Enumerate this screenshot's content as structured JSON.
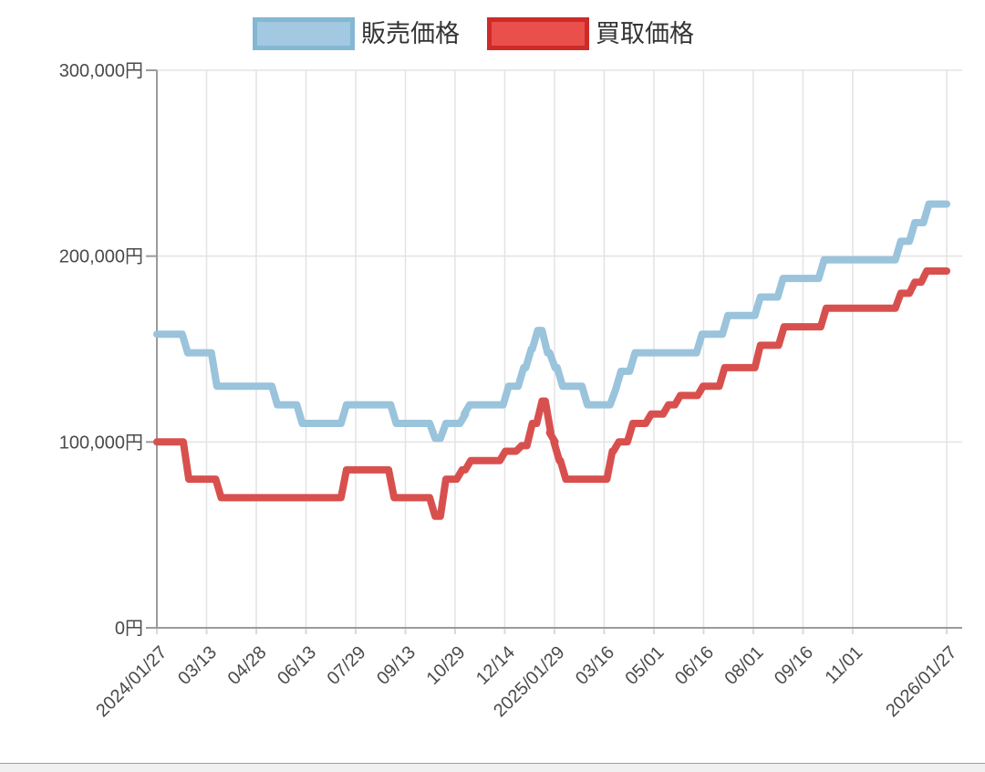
{
  "legend": {
    "items": [
      {
        "id": "hanbai",
        "label": "販売価格",
        "fill": "#a2c9e1",
        "border": "#84b7d3"
      },
      {
        "id": "kaitori",
        "label": "買取価格",
        "fill": "#e9504b",
        "border": "#ce2b28"
      }
    ]
  },
  "chart_data": {
    "type": "line",
    "step": true,
    "x_type": "date",
    "x_range": [
      "2024-01-27",
      "2026-01-27"
    ],
    "ylim": [
      0,
      300000
    ],
    "grid": true,
    "legend_position": "top",
    "y_ticks": [
      {
        "value": 0,
        "label": "0円"
      },
      {
        "value": 100000,
        "label": "100,000円"
      },
      {
        "value": 200000,
        "label": "200,000円"
      },
      {
        "value": 300000,
        "label": "300,000円"
      }
    ],
    "x_ticks": [
      {
        "date": "2024-01-27",
        "label": "2024/01/27"
      },
      {
        "date": "2024-03-13",
        "label": "03/13"
      },
      {
        "date": "2024-04-28",
        "label": "04/28"
      },
      {
        "date": "2024-06-13",
        "label": "06/13"
      },
      {
        "date": "2024-07-29",
        "label": "07/29"
      },
      {
        "date": "2024-09-13",
        "label": "09/13"
      },
      {
        "date": "2024-10-29",
        "label": "10/29"
      },
      {
        "date": "2024-12-14",
        "label": "12/14"
      },
      {
        "date": "2025-01-29",
        "label": "2025/01/29"
      },
      {
        "date": "2025-03-16",
        "label": "03/16"
      },
      {
        "date": "2025-05-01",
        "label": "05/01"
      },
      {
        "date": "2025-06-16",
        "label": "06/16"
      },
      {
        "date": "2025-08-01",
        "label": "08/01"
      },
      {
        "date": "2025-09-16",
        "label": "09/16"
      },
      {
        "date": "2025-11-01",
        "label": "11/01"
      },
      {
        "date": "2026-01-27",
        "label": "2026/01/27"
      }
    ],
    "style": {
      "grid_color": "#e3e3e3",
      "axis_color": "#9b9b9b",
      "tick_text_color": "#4a4a4a",
      "x_tick_mark_color": "#d9d9d9",
      "line_width": 8
    },
    "series": [
      {
        "name": "販売価格",
        "color": "#9ac3dc",
        "points": [
          [
            "2024-01-27",
            158000
          ],
          [
            "2024-02-22",
            148000
          ],
          [
            "2024-03-20",
            130000
          ],
          [
            "2024-05-15",
            120000
          ],
          [
            "2024-06-07",
            110000
          ],
          [
            "2024-07-18",
            120000
          ],
          [
            "2024-09-02",
            110000
          ],
          [
            "2024-10-08",
            102000
          ],
          [
            "2024-10-18",
            110000
          ],
          [
            "2024-11-05",
            115000
          ],
          [
            "2024-11-09",
            120000
          ],
          [
            "2024-12-15",
            130000
          ],
          [
            "2024-12-29",
            140000
          ],
          [
            "2025-01-05",
            150000
          ],
          [
            "2025-01-11",
            160000
          ],
          [
            "2025-01-20",
            148000
          ],
          [
            "2025-01-27",
            140000
          ],
          [
            "2025-02-03",
            130000
          ],
          [
            "2025-02-26",
            120000
          ],
          [
            "2025-03-24",
            128000
          ],
          [
            "2025-03-29",
            138000
          ],
          [
            "2025-04-11",
            148000
          ],
          [
            "2025-06-12",
            158000
          ],
          [
            "2025-07-06",
            168000
          ],
          [
            "2025-08-05",
            178000
          ],
          [
            "2025-08-26",
            188000
          ],
          [
            "2025-10-03",
            198000
          ],
          [
            "2025-12-13",
            208000
          ],
          [
            "2025-12-26",
            218000
          ],
          [
            "2026-01-08",
            228000
          ],
          [
            "2026-01-27",
            228000
          ]
        ]
      },
      {
        "name": "買取価格",
        "color": "#d8504e",
        "points": [
          [
            "2024-01-27",
            100000
          ],
          [
            "2024-02-23",
            80000
          ],
          [
            "2024-03-24",
            70000
          ],
          [
            "2024-07-18",
            85000
          ],
          [
            "2024-08-31",
            70000
          ],
          [
            "2024-10-08",
            60000
          ],
          [
            "2024-10-18",
            80000
          ],
          [
            "2024-11-02",
            85000
          ],
          [
            "2024-11-10",
            90000
          ],
          [
            "2024-12-12",
            95000
          ],
          [
            "2024-12-27",
            98000
          ],
          [
            "2025-01-06",
            110000
          ],
          [
            "2025-01-15",
            122000
          ],
          [
            "2025-01-23",
            105000
          ],
          [
            "2025-01-27",
            100000
          ],
          [
            "2025-01-31",
            90000
          ],
          [
            "2025-02-06",
            80000
          ],
          [
            "2025-03-21",
            95000
          ],
          [
            "2025-03-27",
            100000
          ],
          [
            "2025-04-09",
            110000
          ],
          [
            "2025-04-26",
            115000
          ],
          [
            "2025-05-12",
            120000
          ],
          [
            "2025-05-23",
            125000
          ],
          [
            "2025-06-13",
            130000
          ],
          [
            "2025-07-03",
            140000
          ],
          [
            "2025-08-05",
            152000
          ],
          [
            "2025-08-27",
            162000
          ],
          [
            "2025-10-05",
            172000
          ],
          [
            "2025-12-13",
            180000
          ],
          [
            "2025-12-26",
            186000
          ],
          [
            "2026-01-06",
            192000
          ],
          [
            "2026-01-27",
            192000
          ]
        ]
      }
    ]
  }
}
